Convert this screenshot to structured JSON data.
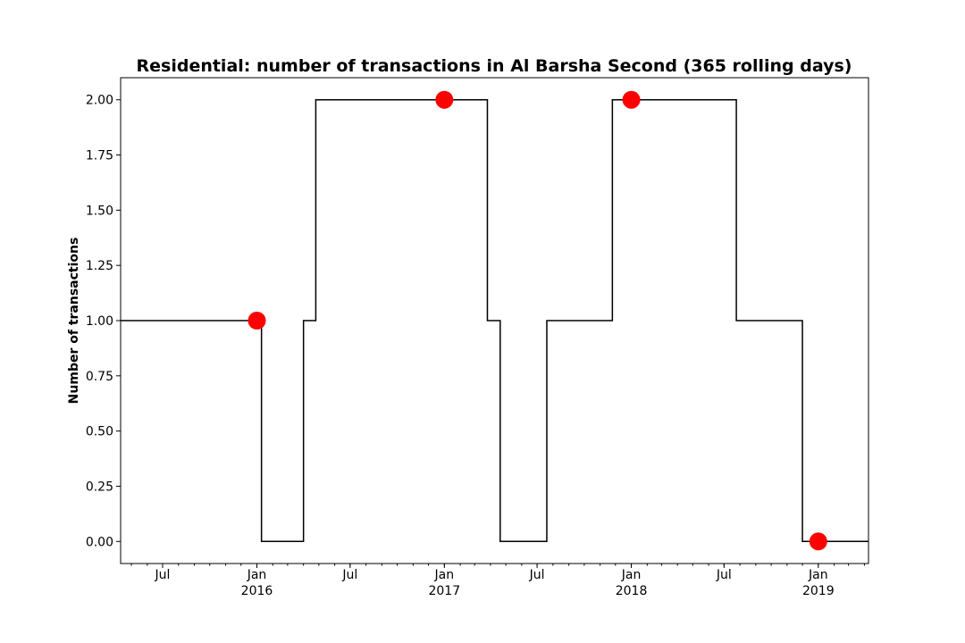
{
  "chart_data": {
    "type": "line",
    "title": "Residential: number of transactions in Al Barsha Second (365 rolling days)",
    "xlabel": "",
    "ylabel": "Number of transactions",
    "xlim": [
      "2015-04-10",
      "2019-04-09"
    ],
    "ylim": [
      -0.1,
      2.1
    ],
    "y_ticks": [
      "0.00",
      "0.25",
      "0.50",
      "0.75",
      "1.00",
      "1.25",
      "1.50",
      "1.75",
      "2.00"
    ],
    "x_ticks": [
      {
        "date": "2015-07-01",
        "label": "Jul",
        "year": ""
      },
      {
        "date": "2016-01-01",
        "label": "Jan",
        "year": "2016"
      },
      {
        "date": "2016-07-01",
        "label": "Jul",
        "year": ""
      },
      {
        "date": "2017-01-01",
        "label": "Jan",
        "year": "2017"
      },
      {
        "date": "2017-07-01",
        "label": "Jul",
        "year": ""
      },
      {
        "date": "2018-01-01",
        "label": "Jan",
        "year": "2018"
      },
      {
        "date": "2018-07-01",
        "label": "Jul",
        "year": ""
      },
      {
        "date": "2019-01-01",
        "label": "Jan",
        "year": "2019"
      }
    ],
    "series": [
      {
        "kind": "step",
        "color": "#000000",
        "points": [
          {
            "x": "2015-04-10",
            "y": 1
          },
          {
            "x": "2016-01-10",
            "y": 0
          },
          {
            "x": "2016-04-01",
            "y": 1
          },
          {
            "x": "2016-04-25",
            "y": 2
          },
          {
            "x": "2017-03-26",
            "y": 1
          },
          {
            "x": "2017-04-20",
            "y": 0
          },
          {
            "x": "2017-07-20",
            "y": 1
          },
          {
            "x": "2017-11-25",
            "y": 2
          },
          {
            "x": "2018-07-25",
            "y": 1
          },
          {
            "x": "2018-12-01",
            "y": 0
          },
          {
            "x": "2019-04-09",
            "y": 0
          }
        ]
      },
      {
        "kind": "markers",
        "color": "#ff0000",
        "points": [
          {
            "x": "2016-01-01",
            "y": 1
          },
          {
            "x": "2017-01-01",
            "y": 2
          },
          {
            "x": "2018-01-01",
            "y": 2
          },
          {
            "x": "2019-01-01",
            "y": 0
          }
        ]
      }
    ],
    "grid": false,
    "legend": "none"
  }
}
